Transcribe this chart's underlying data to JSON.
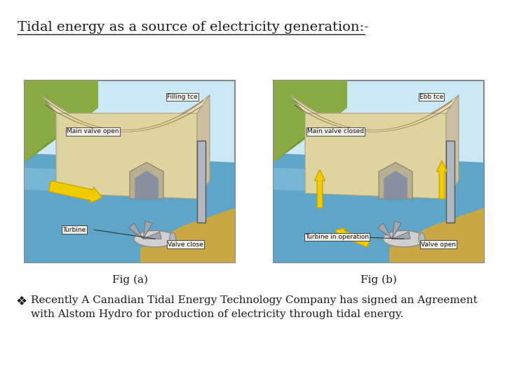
{
  "title": "Tidal energy as a source of electricity generation:-",
  "title_fontsize": 14,
  "fig_a_label": "Fig (a)",
  "fig_b_label": "Fig (b)",
  "bullet_symbol": "❖",
  "bullet_text_line1": "Recently A Canadian Tidal Energy Technology Company has signed an Agreement",
  "bullet_text_line2": "with Alstom Hydro for production of electricity through tidal energy.",
  "background_color": "#ffffff",
  "text_color": "#1a1a1a",
  "fig_label_fontsize": 11,
  "bullet_fontsize": 11,
  "fig_a_top_label": "Filling tce",
  "fig_a_valve_label": "Main valve open",
  "fig_a_turbine_label": "Turbine",
  "fig_a_valve_close_label": "Valve close",
  "fig_b_top_label": "Ebb tce",
  "fig_b_valve_label": "Main valve closed",
  "fig_b_turbine_label": "Turbine in operation",
  "fig_b_valve_open_label": "Valve open",
  "water_blue": "#6aaccc",
  "water_blue2": "#7bbfda",
  "dam_cream": "#e8ddb5",
  "dam_dark": "#c8b882",
  "dam_stripe": "#5a4a2a",
  "ground_brown": "#c8a855",
  "sky_light": "#d4eef8",
  "turbine_gray": "#c0c0c0",
  "yellow_arrow": "#f0cc00",
  "label_box_fc": "#f0f0e8",
  "label_box_ec": "#333333"
}
